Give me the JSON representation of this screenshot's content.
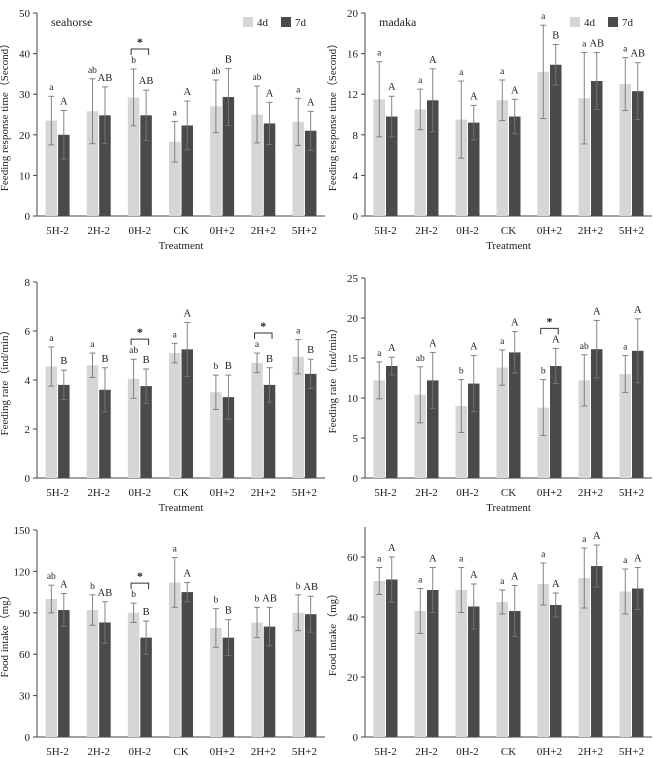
{
  "figure": {
    "legend_labels": [
      "4d",
      "7d"
    ],
    "colors": {
      "4d": "#d6d6d6",
      "7d": "#4a4a4a",
      "axis": "#444444",
      "text": "#222222"
    }
  },
  "chart_data": [
    {
      "type": "bar",
      "title": "seahorse",
      "xlabel": "Treatment",
      "ylabel": "Feeding response time（Second）",
      "ylim": [
        0,
        50
      ],
      "yticks": [
        0,
        10,
        20,
        30,
        40,
        50
      ],
      "categories": [
        "5H-2",
        "2H-2",
        "0H-2",
        "CK",
        "0H+2",
        "2H+2",
        "5H+2"
      ],
      "legend": "top-right",
      "series": [
        {
          "name": "4d",
          "values": [
            23.5,
            25.8,
            29.2,
            18.3,
            27.0,
            25.0,
            23.2
          ],
          "errors": [
            6.0,
            8.0,
            7.0,
            5.0,
            6.5,
            7.0,
            5.8
          ],
          "letters": [
            "a",
            "ab",
            "b",
            "a",
            "ab",
            "ab",
            "a"
          ]
        },
        {
          "name": "7d",
          "values": [
            20.0,
            24.8,
            24.8,
            22.3,
            29.3,
            22.8,
            21.0
          ],
          "errors": [
            6.0,
            7.0,
            6.2,
            6.0,
            7.0,
            5.2,
            4.8
          ],
          "letters": [
            "A",
            "AB",
            "AB",
            "A",
            "B",
            "A",
            "A"
          ]
        }
      ],
      "significance": [
        {
          "category": "0H-2",
          "label": "*"
        }
      ]
    },
    {
      "type": "bar",
      "title": "madaka",
      "xlabel": "Treatment",
      "ylabel": "Feeding response time（Second）",
      "ylim": [
        0,
        20
      ],
      "yticks": [
        0,
        4,
        8,
        12,
        16,
        20
      ],
      "categories": [
        "5H-2",
        "2H-2",
        "0H-2",
        "CK",
        "0H+2",
        "2H+2",
        "5H+2"
      ],
      "legend": "top-right",
      "series": [
        {
          "name": "4d",
          "values": [
            11.5,
            10.5,
            9.5,
            11.4,
            14.2,
            11.6,
            13.0
          ],
          "errors": [
            3.7,
            2.0,
            3.8,
            2.0,
            4.6,
            4.5,
            2.6
          ],
          "letters": [
            "a",
            "a",
            "a",
            "a",
            "a",
            "a",
            "a"
          ]
        },
        {
          "name": "7d",
          "values": [
            9.8,
            11.4,
            9.2,
            9.8,
            14.9,
            13.3,
            12.3
          ],
          "errors": [
            2.0,
            3.1,
            1.7,
            1.7,
            2.0,
            2.8,
            2.8
          ],
          "letters": [
            "A",
            "A",
            "A",
            "A",
            "B",
            "AB",
            "AB"
          ]
        }
      ],
      "significance": []
    },
    {
      "type": "bar",
      "title": "",
      "xlabel": "Treatment",
      "ylabel": "Feeding rate（ind/min）",
      "ylim": [
        0,
        8
      ],
      "yticks": [
        0,
        2,
        4,
        6,
        8
      ],
      "categories": [
        "5H-2",
        "2H-2",
        "0H-2",
        "CK",
        "0H+2",
        "2H+2",
        "5H+2"
      ],
      "legend": "none",
      "series": [
        {
          "name": "4d",
          "values": [
            4.55,
            4.6,
            4.05,
            5.1,
            3.5,
            4.7,
            4.95
          ],
          "errors": [
            0.8,
            0.5,
            0.8,
            0.4,
            0.7,
            0.4,
            0.7
          ],
          "letters": [
            "a",
            "a",
            "ab",
            "a",
            "b",
            "a",
            "a"
          ]
        },
        {
          "name": "7d",
          "values": [
            3.8,
            3.6,
            3.75,
            5.25,
            3.3,
            3.8,
            4.25
          ],
          "errors": [
            0.6,
            0.9,
            0.7,
            1.1,
            0.9,
            0.7,
            0.6
          ],
          "letters": [
            "B",
            "B",
            "B",
            "A",
            "B",
            "B",
            "B"
          ]
        }
      ],
      "significance": [
        {
          "category": "0H-2",
          "label": "*"
        },
        {
          "category": "2H+2",
          "label": "*"
        }
      ]
    },
    {
      "type": "bar",
      "title": "",
      "xlabel": "Treatment",
      "ylabel": "Feeding rate（ind/min）",
      "ylim": [
        0,
        25
      ],
      "yticks": [
        0,
        5,
        10,
        15,
        20,
        25
      ],
      "categories": [
        "5H-2",
        "2H-2",
        "0H-2",
        "CK",
        "0H+2",
        "2H+2",
        "5H+2"
      ],
      "legend": "none",
      "series": [
        {
          "name": "4d",
          "values": [
            12.2,
            10.4,
            9.0,
            13.8,
            8.8,
            12.2,
            13.0
          ],
          "errors": [
            2.3,
            3.5,
            3.3,
            2.2,
            3.5,
            3.2,
            2.3
          ],
          "letters": [
            "a",
            "ab",
            "b",
            "a",
            "b",
            "ab",
            "a"
          ]
        },
        {
          "name": "7d",
          "values": [
            14.0,
            12.2,
            11.8,
            15.7,
            14.0,
            16.1,
            15.9
          ],
          "errors": [
            1.1,
            3.5,
            3.5,
            2.6,
            2.2,
            3.6,
            4.0
          ],
          "letters": [
            "A",
            "A",
            "A",
            "A",
            "A",
            "A",
            "A"
          ]
        }
      ],
      "significance": [
        {
          "category": "0H+2",
          "label": "*"
        }
      ]
    },
    {
      "type": "bar",
      "title": "",
      "xlabel": "Treatment",
      "ylabel": "Food intake（mg）",
      "ylim": [
        0,
        150
      ],
      "yticks": [
        0,
        30,
        60,
        90,
        120,
        150
      ],
      "categories": [
        "5H-2",
        "2H-2",
        "0H-2",
        "CK",
        "0H+2",
        "2H+2",
        "5H+2"
      ],
      "legend": "none",
      "series": [
        {
          "name": "4d",
          "values": [
            100,
            92,
            90,
            112,
            79,
            83,
            90
          ],
          "errors": [
            10,
            11,
            7,
            18,
            14,
            11,
            13
          ],
          "letters": [
            "ab",
            "b",
            "b",
            "a",
            "b",
            "b",
            "b"
          ]
        },
        {
          "name": "7d",
          "values": [
            92,
            83,
            72,
            105,
            72,
            80,
            89
          ],
          "errors": [
            12,
            15,
            12,
            7,
            13,
            14,
            13
          ],
          "letters": [
            "A",
            "AB",
            "B",
            "A",
            "B",
            "AB",
            "AB"
          ]
        }
      ],
      "significance": [
        {
          "category": "0H-2",
          "label": "*"
        }
      ]
    },
    {
      "type": "bar",
      "title": "",
      "xlabel": "Treatment",
      "ylabel": "Food intake（mg）",
      "ylim": [
        0,
        70
      ],
      "yticks": [
        0,
        20,
        40,
        60
      ],
      "categories": [
        "5H-2",
        "2H-2",
        "0H-2",
        "CK",
        "0H+2",
        "2H+2",
        "5H+2"
      ],
      "legend": "none",
      "series": [
        {
          "name": "4d",
          "values": [
            52,
            42,
            49,
            45,
            51,
            53,
            48.5
          ],
          "errors": [
            4.5,
            7.5,
            7.5,
            4.0,
            7.0,
            10.0,
            7.5
          ],
          "letters": [
            "a",
            "a",
            "a",
            "a",
            "a",
            "a",
            "a"
          ]
        },
        {
          "name": "7d",
          "values": [
            52.5,
            49,
            43.5,
            42,
            44,
            57,
            49.5
          ],
          "errors": [
            7.5,
            7.5,
            7.5,
            8.5,
            4.0,
            7.0,
            7.0
          ],
          "letters": [
            "A",
            "A",
            "A",
            "A",
            "A",
            "A",
            "A"
          ]
        }
      ],
      "significance": []
    }
  ]
}
